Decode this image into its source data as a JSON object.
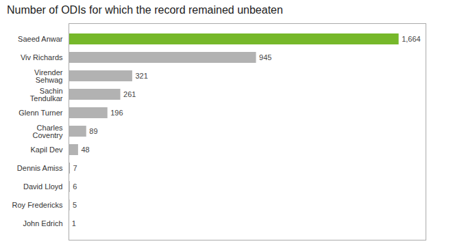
{
  "chart_data": {
    "type": "bar",
    "orientation": "horizontal",
    "title": "Number of ODIs for which the record remained unbeaten",
    "categories": [
      "John Edrich",
      "Roy Fredericks",
      "David Lloyd",
      "Dennis Amiss",
      "Kapil Dev",
      "Charles\nCoventry",
      "Glenn Turner",
      "Sachin\nTendulkar",
      "Virender\nSehwag",
      "Viv Richards",
      "Saeed Anwar"
    ],
    "values": [
      1,
      5,
      6,
      7,
      48,
      89,
      196,
      261,
      321,
      945,
      1664
    ],
    "value_labels": [
      "1",
      "5",
      "6",
      "7",
      "48",
      "89",
      "196",
      "261",
      "321",
      "945",
      "1,664"
    ],
    "colors": [
      "#b2b2b2",
      "#b2b2b2",
      "#b2b2b2",
      "#b2b2b2",
      "#b2b2b2",
      "#b2b2b2",
      "#b2b2b2",
      "#b2b2b2",
      "#b2b2b2",
      "#b2b2b2",
      "#76b82a"
    ],
    "xlim": [
      0,
      1800
    ],
    "data_labels": true,
    "tick_labels": "y",
    "grid": false
  }
}
